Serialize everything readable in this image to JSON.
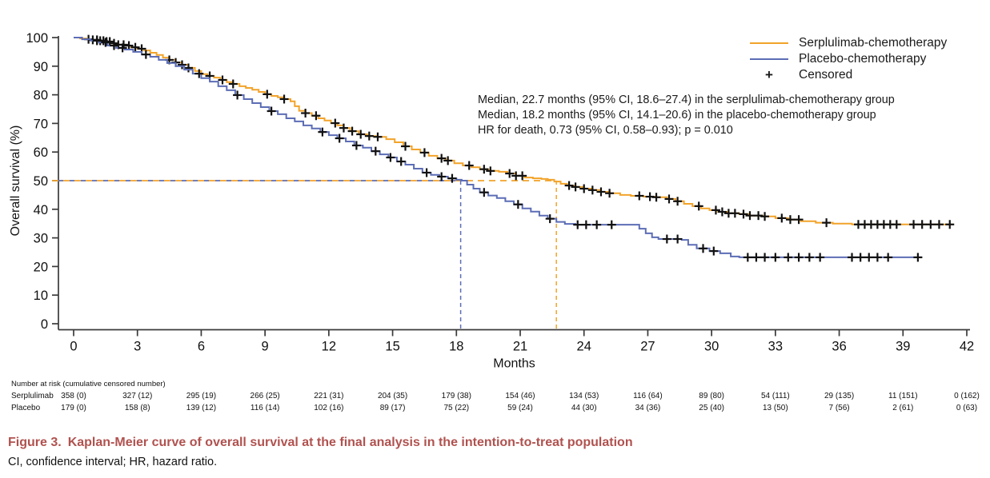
{
  "figure": {
    "caption_label": "Figure 3.",
    "caption_text": "Kaplan-Meier curve of overall survival at the final analysis in the intention-to-treat population",
    "caption_color": "#B0524F",
    "caption_note": "CI, confidence interval; HR, hazard ratio."
  },
  "chart_data": {
    "type": "line",
    "subtype": "kaplan-meier-step",
    "title": "",
    "xlabel": "Months",
    "ylabel": "Overall survival (%)",
    "xlim": [
      0,
      42
    ],
    "xticks": [
      0,
      3,
      6,
      9,
      12,
      15,
      18,
      21,
      24,
      27,
      30,
      33,
      36,
      39,
      42
    ],
    "ylim": [
      0,
      100
    ],
    "yticks": [
      0,
      10,
      20,
      30,
      40,
      50,
      60,
      70,
      80,
      90,
      100
    ],
    "grid": false,
    "legend_position": "top-right",
    "axis_color": "#3a3a3a",
    "censor_marker": "+",
    "annotations": [
      "Median, 22.7 months (95% CI, 18.6–27.4) in the serplulimab-chemotherapy group",
      "Median, 18.2 months (95% CI, 14.1–20.6) in the placebo-chemotherapy group",
      "HR for death, 0.73 (95% CI, 0.58–0.93); p = 0.010"
    ],
    "legend": [
      {
        "label": "Serplulimab-chemotherapy",
        "marker": "line",
        "color": "#F2A32A"
      },
      {
        "label": "Placebo-chemotherapy",
        "marker": "line",
        "color": "#5C6DB5"
      },
      {
        "label": "Censored",
        "marker": "+",
        "color": "#111111"
      }
    ],
    "medians": {
      "reference_pct": 50,
      "serplulimab_months": 22.7,
      "placebo_months": 18.2
    },
    "series": [
      {
        "name": "Serplulimab-chemotherapy",
        "color": "#F2A32A",
        "points": [
          [
            0,
            100
          ],
          [
            0.3,
            99.7
          ],
          [
            0.6,
            99.4
          ],
          [
            0.9,
            99.2
          ],
          [
            1.2,
            98.9
          ],
          [
            1.5,
            98.6
          ],
          [
            1.8,
            98.0
          ],
          [
            2.1,
            97.5
          ],
          [
            2.4,
            97.2
          ],
          [
            2.7,
            96.6
          ],
          [
            3.0,
            96.1
          ],
          [
            3.3,
            95.5
          ],
          [
            3.6,
            94.7
          ],
          [
            3.9,
            93.9
          ],
          [
            4.2,
            93.0
          ],
          [
            4.5,
            92.2
          ],
          [
            4.8,
            91.3
          ],
          [
            5.1,
            90.5
          ],
          [
            5.4,
            89.4
          ],
          [
            5.7,
            88.3
          ],
          [
            6.0,
            87.2
          ],
          [
            6.3,
            86.6
          ],
          [
            6.6,
            86.0
          ],
          [
            6.9,
            85.2
          ],
          [
            7.2,
            84.4
          ],
          [
            7.5,
            83.8
          ],
          [
            7.8,
            83.0
          ],
          [
            8.1,
            82.4
          ],
          [
            8.4,
            81.8
          ],
          [
            8.7,
            81.0
          ],
          [
            9.0,
            80.2
          ],
          [
            9.3,
            79.6
          ],
          [
            9.6,
            79.1
          ],
          [
            9.9,
            78.5
          ],
          [
            10.2,
            77.7
          ],
          [
            10.4,
            76.0
          ],
          [
            10.6,
            74.4
          ],
          [
            10.9,
            73.6
          ],
          [
            11.2,
            72.7
          ],
          [
            11.5,
            71.8
          ],
          [
            11.8,
            71.0
          ],
          [
            12.1,
            70.1
          ],
          [
            12.4,
            69.3
          ],
          [
            12.7,
            68.4
          ],
          [
            13.0,
            67.3
          ],
          [
            13.4,
            66.2
          ],
          [
            13.8,
            65.6
          ],
          [
            14.3,
            65.3
          ],
          [
            14.7,
            64.5
          ],
          [
            15.1,
            63.4
          ],
          [
            15.5,
            62.0
          ],
          [
            15.9,
            60.9
          ],
          [
            16.3,
            59.8
          ],
          [
            16.7,
            58.7
          ],
          [
            17.1,
            57.8
          ],
          [
            17.5,
            57.0
          ],
          [
            17.9,
            56.1
          ],
          [
            18.3,
            55.3
          ],
          [
            18.7,
            54.7
          ],
          [
            19.1,
            54.0
          ],
          [
            19.5,
            53.4
          ],
          [
            20.0,
            53.1
          ],
          [
            20.4,
            52.5
          ],
          [
            20.8,
            51.7
          ],
          [
            21.2,
            51.1
          ],
          [
            21.6,
            50.8
          ],
          [
            22.0,
            50.6
          ],
          [
            22.3,
            50.3
          ],
          [
            22.6,
            49.7
          ],
          [
            22.9,
            48.9
          ],
          [
            23.2,
            48.3
          ],
          [
            23.6,
            47.8
          ],
          [
            24.0,
            47.2
          ],
          [
            24.4,
            46.7
          ],
          [
            24.8,
            46.1
          ],
          [
            25.2,
            45.6
          ],
          [
            25.7,
            45.0
          ],
          [
            26.2,
            44.7
          ],
          [
            26.8,
            44.4
          ],
          [
            27.4,
            44.2
          ],
          [
            27.9,
            43.6
          ],
          [
            28.3,
            42.8
          ],
          [
            28.7,
            41.9
          ],
          [
            29.1,
            41.1
          ],
          [
            29.5,
            40.3
          ],
          [
            29.9,
            39.7
          ],
          [
            30.3,
            39.1
          ],
          [
            30.8,
            38.6
          ],
          [
            31.3,
            38.3
          ],
          [
            31.8,
            37.8
          ],
          [
            32.4,
            37.5
          ],
          [
            33.0,
            36.9
          ],
          [
            33.6,
            36.4
          ],
          [
            34.2,
            35.8
          ],
          [
            34.9,
            35.3
          ],
          [
            35.7,
            35.0
          ],
          [
            36.6,
            34.7
          ],
          [
            41.3,
            34.7
          ]
        ],
        "censored_months": [
          0.7,
          0.9,
          1.1,
          1.25,
          1.4,
          1.55,
          1.7,
          1.9,
          2.1,
          2.35,
          2.6,
          2.9,
          3.2,
          4.5,
          4.8,
          5.1,
          5.4,
          6.4,
          7.0,
          7.5,
          9.1,
          9.9,
          10.9,
          11.4,
          12.3,
          12.7,
          13.1,
          13.5,
          13.9,
          14.3,
          15.6,
          16.5,
          17.3,
          17.6,
          18.6,
          19.3,
          19.6,
          20.5,
          20.8,
          21.1,
          23.3,
          23.6,
          24.0,
          24.4,
          24.8,
          25.2,
          26.6,
          27.1,
          27.4,
          28.0,
          28.4,
          29.4,
          30.2,
          30.5,
          30.8,
          31.1,
          31.5,
          31.8,
          32.2,
          32.5,
          33.3,
          33.7,
          34.1,
          35.4,
          36.9,
          37.2,
          37.5,
          37.8,
          38.1,
          38.4,
          38.7,
          39.5,
          39.9,
          40.3,
          40.7,
          41.2
        ]
      },
      {
        "name": "Placebo-chemotherapy",
        "color": "#5C6DB5",
        "points": [
          [
            0,
            100
          ],
          [
            0.4,
            99.4
          ],
          [
            0.8,
            98.9
          ],
          [
            1.2,
            98.3
          ],
          [
            1.6,
            97.2
          ],
          [
            2.0,
            96.4
          ],
          [
            2.4,
            95.8
          ],
          [
            2.8,
            95.0
          ],
          [
            3.2,
            94.1
          ],
          [
            3.6,
            93.3
          ],
          [
            4.0,
            92.2
          ],
          [
            4.4,
            91.1
          ],
          [
            4.8,
            90.0
          ],
          [
            5.2,
            88.8
          ],
          [
            5.6,
            87.4
          ],
          [
            6.0,
            85.8
          ],
          [
            6.4,
            84.6
          ],
          [
            6.8,
            83.0
          ],
          [
            7.2,
            81.6
          ],
          [
            7.6,
            79.9
          ],
          [
            8.0,
            78.5
          ],
          [
            8.4,
            77.1
          ],
          [
            8.8,
            75.7
          ],
          [
            9.2,
            74.3
          ],
          [
            9.6,
            73.2
          ],
          [
            10.0,
            71.8
          ],
          [
            10.4,
            70.7
          ],
          [
            10.8,
            69.3
          ],
          [
            11.2,
            68.2
          ],
          [
            11.6,
            67.0
          ],
          [
            12.0,
            65.9
          ],
          [
            12.4,
            64.8
          ],
          [
            12.8,
            63.7
          ],
          [
            13.2,
            62.3
          ],
          [
            13.6,
            61.5
          ],
          [
            14.0,
            60.3
          ],
          [
            14.4,
            59.2
          ],
          [
            14.8,
            58.1
          ],
          [
            15.2,
            56.7
          ],
          [
            15.6,
            55.6
          ],
          [
            16.0,
            54.2
          ],
          [
            16.4,
            52.8
          ],
          [
            16.8,
            52.0
          ],
          [
            17.2,
            51.4
          ],
          [
            17.6,
            50.8
          ],
          [
            18.0,
            50.3
          ],
          [
            18.25,
            50.0
          ],
          [
            18.5,
            48.6
          ],
          [
            18.8,
            47.2
          ],
          [
            19.1,
            45.9
          ],
          [
            19.5,
            44.8
          ],
          [
            19.9,
            43.9
          ],
          [
            20.3,
            42.8
          ],
          [
            20.7,
            41.7
          ],
          [
            21.1,
            40.3
          ],
          [
            21.5,
            39.2
          ],
          [
            21.9,
            37.8
          ],
          [
            22.3,
            36.7
          ],
          [
            22.7,
            35.6
          ],
          [
            23.1,
            34.9
          ],
          [
            23.6,
            34.6
          ],
          [
            26.3,
            34.6
          ],
          [
            26.6,
            33.2
          ],
          [
            26.9,
            31.6
          ],
          [
            27.2,
            30.2
          ],
          [
            27.5,
            29.6
          ],
          [
            28.6,
            29.3
          ],
          [
            28.9,
            27.6
          ],
          [
            29.3,
            26.3
          ],
          [
            29.9,
            25.4
          ],
          [
            30.4,
            24.6
          ],
          [
            30.9,
            23.5
          ],
          [
            31.3,
            23.2
          ],
          [
            39.9,
            23.2
          ]
        ],
        "censored_months": [
          1.1,
          1.5,
          1.9,
          2.3,
          3.4,
          5.9,
          7.7,
          9.3,
          11.7,
          12.5,
          13.3,
          14.2,
          14.9,
          15.4,
          16.6,
          17.3,
          17.8,
          19.3,
          20.9,
          22.4,
          23.7,
          24.1,
          24.6,
          25.3,
          27.9,
          28.4,
          29.6,
          30.1,
          31.7,
          32.1,
          32.5,
          33.0,
          33.6,
          34.1,
          34.6,
          35.1,
          36.6,
          37.0,
          37.4,
          37.8,
          38.3,
          39.7
        ]
      }
    ],
    "risk_table": {
      "header": "Number at risk (cumulative censored number)",
      "months": [
        0,
        3,
        6,
        9,
        12,
        15,
        18,
        21,
        24,
        27,
        30,
        33,
        36,
        39,
        42
      ],
      "rows": [
        {
          "label": "Serplulimab",
          "values": [
            "358 (0)",
            "327 (12)",
            "295 (19)",
            "266 (25)",
            "221 (31)",
            "204 (35)",
            "179 (38)",
            "154 (46)",
            "134 (53)",
            "116 (64)",
            "89 (80)",
            "54 (111)",
            "29 (135)",
            "11 (151)",
            "0 (162)"
          ]
        },
        {
          "label": "Placebo",
          "values": [
            "179 (0)",
            "158 (8)",
            "139 (12)",
            "116 (14)",
            "102 (16)",
            "89 (17)",
            "75 (22)",
            "59 (24)",
            "44 (30)",
            "34 (36)",
            "25 (40)",
            "13 (50)",
            "7 (56)",
            "2 (61)",
            "0 (63)"
          ]
        }
      ]
    }
  }
}
